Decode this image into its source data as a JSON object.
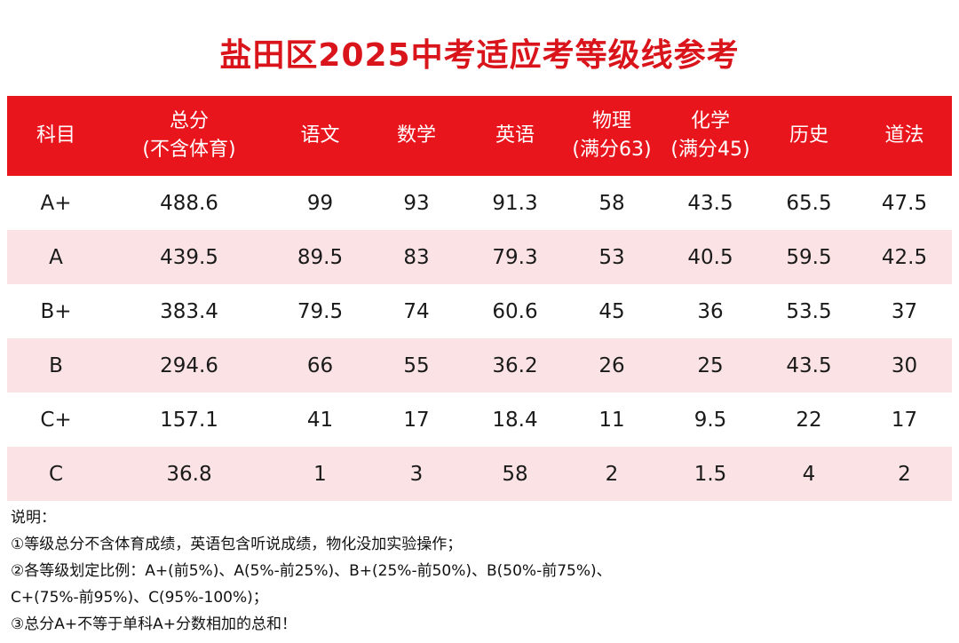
{
  "title": "盐田区2025中考适应考等级线参考",
  "table": {
    "headers": [
      {
        "line1": "科目",
        "line2": ""
      },
      {
        "line1": "总分",
        "line2": "(不含体育)"
      },
      {
        "line1": "语文",
        "line2": ""
      },
      {
        "line1": "数学",
        "line2": ""
      },
      {
        "line1": "英语",
        "line2": ""
      },
      {
        "line1": "物理",
        "line2": "(满分63)"
      },
      {
        "line1": "化学",
        "line2": "(满分45)"
      },
      {
        "line1": "历史",
        "line2": ""
      },
      {
        "line1": "道法",
        "line2": ""
      }
    ],
    "rows": [
      [
        "A+",
        "488.6",
        "99",
        "93",
        "91.3",
        "58",
        "43.5",
        "65.5",
        "47.5"
      ],
      [
        "A",
        "439.5",
        "89.5",
        "83",
        "79.3",
        "53",
        "40.5",
        "59.5",
        "42.5"
      ],
      [
        "B+",
        "383.4",
        "79.5",
        "74",
        "60.6",
        "45",
        "36",
        "53.5",
        "37"
      ],
      [
        "B",
        "294.6",
        "66",
        "55",
        "36.2",
        "26",
        "25",
        "43.5",
        "30"
      ],
      [
        "C+",
        "157.1",
        "41",
        "17",
        "18.4",
        "11",
        "9.5",
        "22",
        "17"
      ],
      [
        "C",
        "36.8",
        "1",
        "3",
        "58",
        "2",
        "1.5",
        "4",
        "2"
      ]
    ]
  },
  "notes": [
    "说明：",
    "①等级总分不含体育成绩，英语包含听说成绩，物化没加实验操作；",
    "②各等级划定比例：A+(前5%)、A(5%-前25%)、B+(25%-前50%)、B(50%-前75%)、",
    "C+(75%-前95%)、C(95%-100%)；",
    "③总分A+不等于单科A+分数相加的总和！"
  ],
  "colors": {
    "header_bg": "#e9151d",
    "title": "#d9141b",
    "alt_row": "#fbe3e5"
  }
}
